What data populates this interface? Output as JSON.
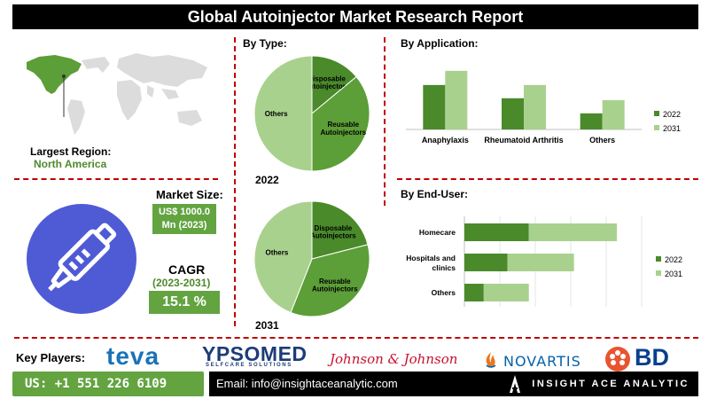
{
  "header": {
    "title": "Global Autoinjector Market Research Report"
  },
  "region": {
    "label": "Largest Region:",
    "value": "North America"
  },
  "market": {
    "size_label": "Market Size:",
    "size_value_line1": "US$ 1000.0",
    "size_value_line2": "Mn (2023)",
    "cagr_label": "CAGR",
    "cagr_period": "(2023-2031)",
    "cagr_value": "15.1 %"
  },
  "by_type": {
    "heading": "By Type:"
  },
  "by_application": {
    "heading": "By Application:"
  },
  "by_end_user": {
    "heading": "By End-User:"
  },
  "colors": {
    "green_dark": "#5c9e37",
    "green_mid": "#4a8a2b",
    "green_light": "#a9d18e",
    "accent_red": "#c00000"
  },
  "chart_data": [
    {
      "type": "pie",
      "year_label": "2022",
      "slices": [
        {
          "label": "Disposable Autoinjectors",
          "value": 14
        },
        {
          "label": "Reusable Autoinjectors",
          "value": 36
        },
        {
          "label": "Others",
          "value": 50
        }
      ]
    },
    {
      "type": "pie",
      "year_label": "2031",
      "slices": [
        {
          "label": "Disposable Autoinjectors",
          "value": 21
        },
        {
          "label": "Reusable Autoinjectors",
          "value": 35
        },
        {
          "label": "Others",
          "value": 44
        }
      ]
    },
    {
      "type": "bar",
      "categories": [
        "Anaphylaxis",
        "Rheumatoid Arthritis",
        "Others"
      ],
      "series": [
        {
          "name": "2022",
          "values": [
            47,
            33,
            17
          ]
        },
        {
          "name": "2031",
          "values": [
            62,
            47,
            31
          ]
        }
      ],
      "ylim": [
        0,
        75
      ]
    },
    {
      "type": "bar",
      "orientation": "horizontal",
      "stacked": true,
      "categories": [
        "Homecare",
        "Hospitals and clinics",
        "Others"
      ],
      "series": [
        {
          "name": "2022",
          "values": [
            60,
            40,
            18
          ]
        },
        {
          "name": "2031",
          "values": [
            82,
            62,
            42
          ]
        }
      ],
      "xlim": [
        0,
        165
      ]
    }
  ],
  "footer": {
    "key_players_label": "Key Players:",
    "players": [
      "teva",
      "YPSOMED",
      "SELFCARE SOLUTIONS",
      "Johnson & Johnson",
      "NOVARTIS",
      "BD"
    ],
    "phone": "US: +1 551 226 6109",
    "email": "Email: info@insightaceanalytic.com",
    "brand": "INSIGHT ACE ANALYTIC"
  }
}
